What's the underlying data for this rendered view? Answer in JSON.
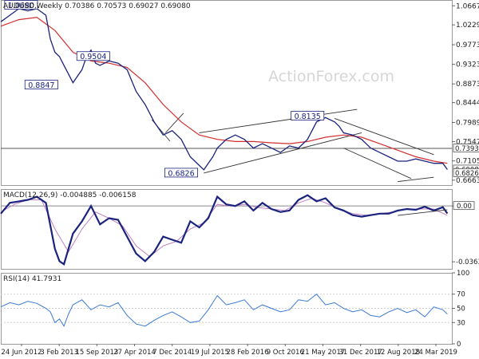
{
  "chart_data": [
    {
      "type": "line",
      "title": "AUDUSD,Weekly",
      "ohlc_readout": "0.70386 0.70573 0.69027 0.69080",
      "watermark": "ActionForex.com",
      "x_tick_labels": [
        "24 Jun 2012",
        "3 Feb 2013",
        "15 Sep 2013",
        "27 Apr 2014",
        "7 Dec 2014",
        "19 Jul 2015",
        "28 Feb 2016",
        "9 Oct 2016",
        "21 May 2017",
        "31 Dec 2017",
        "12 Aug 2018",
        "24 Mar 2019"
      ],
      "y_ticks": [
        1.0667,
        1.0229,
        0.9773,
        0.9323,
        0.8873,
        0.8444,
        0.7989,
        0.7547,
        0.7105,
        0.6663
      ],
      "y_tick_labels": [
        "1.06670",
        "1.02290",
        "0.97730",
        "0.93230",
        "0.88730",
        "0.84440",
        "0.79890",
        "0.75470",
        "0.71050",
        "0.66630"
      ],
      "ylim": [
        0.655,
        1.08
      ],
      "xlim": [
        0,
        100
      ],
      "price_line": {
        "color": "#1a237e",
        "x": [
          0,
          2,
          4,
          6,
          8,
          10,
          11,
          12,
          13,
          14,
          15,
          16,
          18,
          19,
          20,
          21,
          22,
          24,
          26,
          28,
          30,
          32,
          34,
          36,
          38,
          40,
          42,
          44,
          45,
          46,
          47,
          48,
          50,
          52,
          54,
          56,
          58,
          60,
          62,
          64,
          66,
          68,
          70,
          72,
          74,
          75,
          76,
          78,
          80,
          82,
          84,
          86,
          88,
          90,
          92,
          94,
          96,
          98,
          99
        ],
        "y": [
          1.03,
          1.045,
          1.06,
          1.055,
          1.06,
          1.045,
          0.99,
          0.96,
          0.95,
          0.93,
          0.91,
          0.89,
          0.92,
          0.95,
          0.965,
          0.935,
          0.93,
          0.94,
          0.935,
          0.92,
          0.87,
          0.84,
          0.8,
          0.77,
          0.78,
          0.76,
          0.72,
          0.7,
          0.69,
          0.705,
          0.72,
          0.74,
          0.76,
          0.77,
          0.76,
          0.74,
          0.75,
          0.74,
          0.73,
          0.745,
          0.74,
          0.76,
          0.8,
          0.81,
          0.8,
          0.79,
          0.775,
          0.77,
          0.76,
          0.74,
          0.73,
          0.72,
          0.71,
          0.71,
          0.715,
          0.71,
          0.705,
          0.705,
          0.6908
        ]
      },
      "sma_line": {
        "color": "#d32f2f",
        "x": [
          0,
          4,
          8,
          12,
          16,
          20,
          24,
          28,
          32,
          36,
          40,
          44,
          48,
          52,
          56,
          60,
          64,
          68,
          72,
          76,
          80,
          84,
          88,
          92,
          96,
          99
        ],
        "y": [
          1.02,
          1.035,
          1.04,
          1.01,
          0.96,
          0.94,
          0.935,
          0.925,
          0.89,
          0.84,
          0.8,
          0.77,
          0.76,
          0.755,
          0.755,
          0.752,
          0.75,
          0.755,
          0.765,
          0.77,
          0.765,
          0.75,
          0.735,
          0.72,
          0.71,
          0.705
        ]
      },
      "trendlines": [
        {
          "x": [
            33.5,
            37.5
          ],
          "y": [
            0.805,
            0.756
          ]
        },
        {
          "x": [
            36.5,
            40.5
          ],
          "y": [
            0.775,
            0.82
          ]
        },
        {
          "x": [
            44,
            79
          ],
          "y": [
            0.775,
            0.829
          ]
        },
        {
          "x": [
            45,
            80
          ],
          "y": [
            0.6826,
            0.775
          ]
        },
        {
          "x": [
            74,
            96
          ],
          "y": [
            0.808,
            0.725
          ]
        },
        {
          "x": [
            76,
            91
          ],
          "y": [
            0.74,
            0.67
          ]
        },
        {
          "x": [
            88,
            96
          ],
          "y": [
            0.663,
            0.673
          ]
        }
      ],
      "horizontal_line": {
        "y": 0.7393,
        "color": "#555555"
      },
      "price_labels": [
        {
          "text": "1.0680",
          "x": 4.5,
          "y": 1.068
        },
        {
          "text": "0.9504",
          "x": 20.5,
          "y": 0.9504
        },
        {
          "text": "0.8847",
          "x": 9,
          "y": 0.8847
        },
        {
          "text": "0.8135",
          "x": 68,
          "y": 0.8135
        },
        {
          "text": "0.6826",
          "x": 40,
          "y": 0.6826
        }
      ],
      "right_axis_boxes": [
        {
          "text": "0.73930",
          "value": 0.7393
        },
        {
          "text": "0.69080",
          "value": 0.6908
        },
        {
          "text": "0.68260",
          "value": 0.6826
        }
      ]
    },
    {
      "type": "line",
      "title": "MACD(12,26,9) -0.004885 -0.006158",
      "y_tick_labels": [
        "0.00",
        "-0.036389"
      ],
      "y_ticks": [
        0.0,
        -0.036389
      ],
      "ylim": [
        -0.041,
        0.011
      ],
      "xlim": [
        0,
        100
      ],
      "zero_line_color": "#8a8a8a",
      "macd_line": {
        "color": "#1a237e",
        "x": [
          0,
          2,
          4,
          6,
          8,
          10,
          12,
          13,
          14,
          16,
          18,
          20,
          22,
          24,
          26,
          28,
          30,
          32,
          34,
          36,
          38,
          40,
          42,
          44,
          46,
          48,
          50,
          52,
          54,
          56,
          58,
          60,
          62,
          64,
          66,
          68,
          70,
          72,
          74,
          76,
          78,
          80,
          82,
          84,
          86,
          88,
          90,
          92,
          94,
          96,
          98,
          99
        ],
        "y": [
          -0.005,
          0.002,
          0.003,
          0.004,
          0.006,
          0.002,
          -0.028,
          -0.036,
          -0.038,
          -0.018,
          -0.01,
          0.0,
          -0.012,
          -0.008,
          -0.009,
          -0.02,
          -0.031,
          -0.036,
          -0.03,
          -0.02,
          -0.022,
          -0.024,
          -0.01,
          -0.014,
          -0.008,
          0.006,
          0.001,
          0.0,
          0.003,
          -0.003,
          0.002,
          -0.002,
          -0.004,
          -0.003,
          0.004,
          0.007,
          0.003,
          0.005,
          -0.001,
          -0.003,
          -0.006,
          -0.007,
          -0.006,
          -0.005,
          -0.005,
          -0.003,
          -0.002,
          -0.0025,
          -0.0005,
          -0.003,
          -0.0008,
          -0.0049
        ]
      },
      "signal_line": {
        "color": "#c080c0",
        "x": [
          0,
          3,
          6,
          9,
          12,
          15,
          18,
          21,
          24,
          27,
          30,
          33,
          36,
          39,
          42,
          45,
          48,
          51,
          54,
          57,
          60,
          63,
          66,
          69,
          72,
          75,
          78,
          81,
          84,
          87,
          90,
          93,
          96,
          99
        ],
        "y": [
          -0.004,
          0.001,
          0.004,
          0.004,
          -0.015,
          -0.03,
          -0.015,
          -0.004,
          -0.008,
          -0.013,
          -0.026,
          -0.033,
          -0.026,
          -0.023,
          -0.015,
          -0.011,
          0.001,
          0.0,
          0.001,
          -0.001,
          -0.002,
          -0.003,
          0.002,
          0.005,
          0.002,
          -0.002,
          -0.005,
          -0.006,
          -0.005,
          -0.004,
          -0.002,
          -0.002,
          -0.002,
          -0.0062
        ]
      },
      "trendline": {
        "x": [
          88,
          99
        ],
        "y": [
          -0.0062,
          -0.0025
        ]
      },
      "right_axis_box": {
        "text": "0.00",
        "value": 0.0
      }
    },
    {
      "type": "line",
      "title": "RSI(14) 41.7931",
      "y_tick_labels": [
        "100",
        "70",
        "50",
        "30",
        "0"
      ],
      "y_ticks": [
        100,
        70,
        50,
        30,
        0
      ],
      "ylim": [
        0,
        100
      ],
      "xlim": [
        0,
        100
      ],
      "rsi_line": {
        "color": "#3a7bd5",
        "x": [
          0,
          2,
          4,
          6,
          8,
          10,
          11,
          12,
          13,
          14,
          15,
          16,
          18,
          20,
          22,
          24,
          26,
          28,
          30,
          32,
          34,
          36,
          38,
          40,
          42,
          44,
          46,
          48,
          50,
          52,
          54,
          56,
          58,
          60,
          62,
          64,
          66,
          68,
          70,
          72,
          74,
          76,
          78,
          80,
          82,
          84,
          86,
          88,
          90,
          92,
          94,
          96,
          98,
          99
        ],
        "y": [
          52,
          58,
          55,
          60,
          57,
          50,
          45,
          30,
          35,
          25,
          42,
          55,
          62,
          48,
          55,
          52,
          58,
          40,
          28,
          25,
          33,
          40,
          45,
          38,
          30,
          32,
          48,
          68,
          55,
          58,
          62,
          48,
          55,
          50,
          45,
          48,
          62,
          60,
          70,
          55,
          58,
          50,
          45,
          48,
          40,
          38,
          45,
          50,
          44,
          48,
          38,
          52,
          48,
          41.79
        ]
      }
    }
  ]
}
